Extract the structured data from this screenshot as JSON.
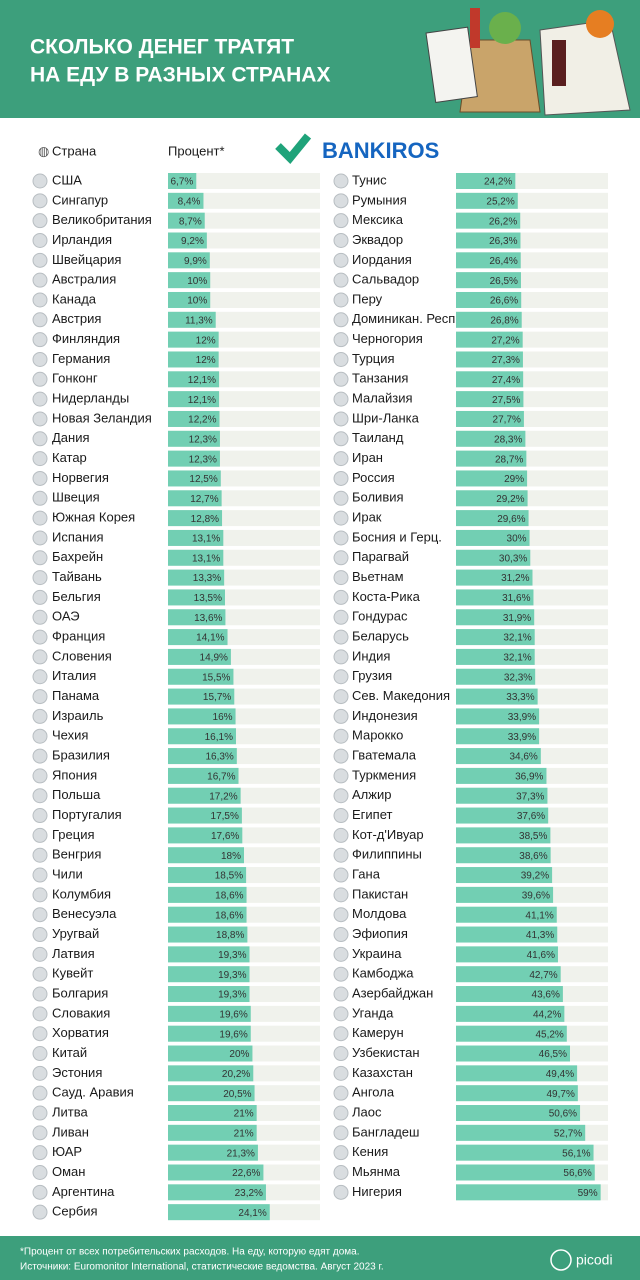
{
  "header": {
    "title_lines": [
      "СКОЛЬКО ДЕНЕГ ТРАТЯТ",
      "НА ЕДУ В РАЗНЫХ СТРАНАХ"
    ],
    "logo": "BANKIROS"
  },
  "chart_data": [
    {
      "type": "bar",
      "orientation": "horizontal",
      "y_label": "Страна",
      "x_label": "Процент*",
      "color": "#72cfb3",
      "track_color": "#f0f2ec",
      "xlim": [
        0,
        36
      ],
      "categories": [
        "США",
        "Сингапур",
        "Великобритания",
        "Ирландия",
        "Швейцария",
        "Австралия",
        "Канада",
        "Австрия",
        "Финляндия",
        "Германия",
        "Гонконг",
        "Нидерланды",
        "Новая Зеландия",
        "Дания",
        "Катар",
        "Норвегия",
        "Швеция",
        "Южная Корея",
        "Испания",
        "Бахрейн",
        "Тайвань",
        "Бельгия",
        "ОАЭ",
        "Франция",
        "Словения",
        "Италия",
        "Панама",
        "Израиль",
        "Чехия",
        "Бразилия",
        "Япония",
        "Польша",
        "Португалия",
        "Греция",
        "Венгрия",
        "Чили",
        "Колумбия",
        "Венесуэла",
        "Уругвай",
        "Латвия",
        "Кувейт",
        "Болгария",
        "Словакия",
        "Хорватия",
        "Китай",
        "Эстония",
        "Сауд. Аравия",
        "Литва",
        "Ливан",
        "ЮАР",
        "Оман",
        "Аргентина",
        "Сербия"
      ],
      "values": [
        6.7,
        8.4,
        8.7,
        9.2,
        9.9,
        10,
        10,
        11.3,
        12,
        12,
        12.1,
        12.1,
        12.2,
        12.3,
        12.3,
        12.5,
        12.7,
        12.8,
        13.1,
        13.1,
        13.3,
        13.5,
        13.6,
        14.1,
        14.9,
        15.5,
        15.7,
        16,
        16.1,
        16.3,
        16.7,
        17.2,
        17.5,
        17.6,
        18,
        18.5,
        18.6,
        18.6,
        18.8,
        19.3,
        19.3,
        19.3,
        19.6,
        19.6,
        20,
        20.2,
        20.5,
        21,
        21,
        21.3,
        22.6,
        23.2,
        24.1
      ],
      "value_labels": [
        "6,7%",
        "8,4%",
        "8,7%",
        "9,2%",
        "9,9%",
        "10%",
        "10%",
        "11,3%",
        "12%",
        "12%",
        "12,1%",
        "12,1%",
        "12,2%",
        "12,3%",
        "12,3%",
        "12,5%",
        "12,7%",
        "12,8%",
        "13,1%",
        "13,1%",
        "13,3%",
        "13,5%",
        "13,6%",
        "14,1%",
        "14,9%",
        "15,5%",
        "15,7%",
        "16%",
        "16,1%",
        "16,3%",
        "16,7%",
        "17,2%",
        "17,5%",
        "17,6%",
        "18%",
        "18,5%",
        "18,6%",
        "18,6%",
        "18,8%",
        "19,3%",
        "19,3%",
        "19,3%",
        "19,6%",
        "19,6%",
        "20%",
        "20,2%",
        "20,5%",
        "21%",
        "21%",
        "21,3%",
        "22,6%",
        "23,2%",
        "24,1%"
      ]
    },
    {
      "type": "bar",
      "orientation": "horizontal",
      "color": "#72cfb3",
      "track_color": "#f0f2ec",
      "xlim": [
        0,
        62
      ],
      "categories": [
        "Тунис",
        "Румыния",
        "Мексика",
        "Эквадор",
        "Иордания",
        "Сальвадор",
        "Перу",
        "Доминикан. Респ.",
        "Черногория",
        "Турция",
        "Танзания",
        "Малайзия",
        "Шри-Ланка",
        "Таиланд",
        "Иран",
        "Россия",
        "Боливия",
        "Ирак",
        "Босния и Герц.",
        "Парагвай",
        "Вьетнам",
        "Коста-Рика",
        "Гондурас",
        "Беларусь",
        "Индия",
        "Грузия",
        "Сев. Македония",
        "Индонезия",
        "Марокко",
        "Гватемала",
        "Туркмения",
        "Алжир",
        "Египет",
        "Кот-д'Ивуар",
        "Филиппины",
        "Гана",
        "Пакистан",
        "Молдова",
        "Эфиопия",
        "Украина",
        "Камбоджа",
        "Азербайджан",
        "Уганда",
        "Камерун",
        "Узбекистан",
        "Казахстан",
        "Ангола",
        "Лаос",
        "Бангладеш",
        "Кения",
        "Мьянма",
        "Нигерия"
      ],
      "values": [
        24.2,
        25.2,
        26.2,
        26.3,
        26.4,
        26.5,
        26.6,
        26.8,
        27.2,
        27.3,
        27.4,
        27.5,
        27.7,
        28.3,
        28.7,
        29,
        29.2,
        29.6,
        30,
        30.3,
        31.2,
        31.6,
        31.9,
        32.1,
        32.1,
        32.3,
        33.3,
        33.9,
        33.9,
        34.6,
        36.9,
        37.3,
        37.6,
        38.5,
        38.6,
        39.2,
        39.6,
        41.1,
        41.3,
        41.6,
        42.7,
        43.6,
        44.2,
        45.2,
        46.5,
        49.4,
        49.7,
        50.6,
        52.7,
        56.1,
        56.6,
        59
      ],
      "value_labels": [
        "24,2%",
        "25,2%",
        "26,2%",
        "26,3%",
        "26,4%",
        "26,5%",
        "26,6%",
        "26,8%",
        "27,2%",
        "27,3%",
        "27,4%",
        "27,5%",
        "27,7%",
        "28,3%",
        "28,7%",
        "29%",
        "29,2%",
        "29,6%",
        "30%",
        "30,3%",
        "31,2%",
        "31,6%",
        "31,9%",
        "32,1%",
        "32,1%",
        "32,3%",
        "33,3%",
        "33,9%",
        "33,9%",
        "34,6%",
        "36,9%",
        "37,3%",
        "37,6%",
        "38,5%",
        "38,6%",
        "39,2%",
        "39,6%",
        "41,1%",
        "41,3%",
        "41,6%",
        "42,7%",
        "43,6%",
        "44,2%",
        "45,2%",
        "46,5%",
        "49,4%",
        "49,7%",
        "50,6%",
        "52,7%",
        "56,1%",
        "56,6%",
        "59%"
      ]
    }
  ],
  "footer": {
    "lines": [
      "*Процент от всех потребительских расходов. На еду, которую едят дома.",
      "Источники: Euromonitor International, статистические ведомства. Август 2023 г."
    ],
    "brand": "picodi"
  }
}
